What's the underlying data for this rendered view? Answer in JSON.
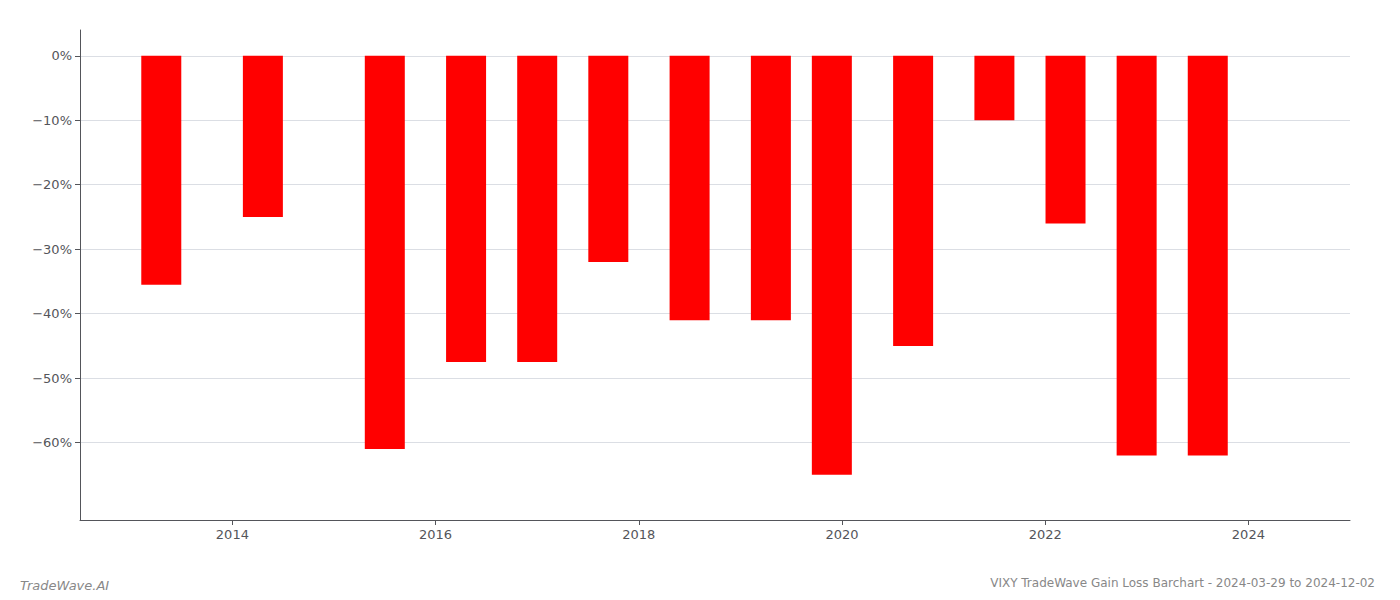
{
  "chart_data": {
    "type": "bar",
    "title": "VIXY TradeWave Gain Loss Barchart - 2024-03-29 to 2024-12-02",
    "annotations": [
      "TradeWave.AI"
    ],
    "x": [
      2013.3,
      2014.3,
      2015.5,
      2016.3,
      2017.0,
      2017.7,
      2018.5,
      2019.3,
      2019.9,
      2020.7,
      2021.5,
      2022.2,
      2022.9,
      2023.6
    ],
    "values": [
      -35.5,
      -25.0,
      -61.0,
      -47.5,
      -47.5,
      -32.0,
      -41.0,
      -41.0,
      -65.0,
      -45.0,
      -10.0,
      -26.0,
      -62.0,
      -62.0
    ],
    "color": "#ff0000",
    "xlim": [
      2012.5,
      2025.0
    ],
    "xticks": [
      2014,
      2016,
      2018,
      2020,
      2022,
      2024
    ],
    "ylim": [
      -72,
      4
    ],
    "yticks": [
      {
        "value": 0,
        "label": "0%"
      },
      {
        "value": -10,
        "label": "−10%"
      },
      {
        "value": -20,
        "label": "−20%"
      },
      {
        "value": -30,
        "label": "−30%"
      },
      {
        "value": -40,
        "label": "−40%"
      },
      {
        "value": -50,
        "label": "−50%"
      },
      {
        "value": -60,
        "label": "−60%"
      }
    ],
    "grid": true
  }
}
